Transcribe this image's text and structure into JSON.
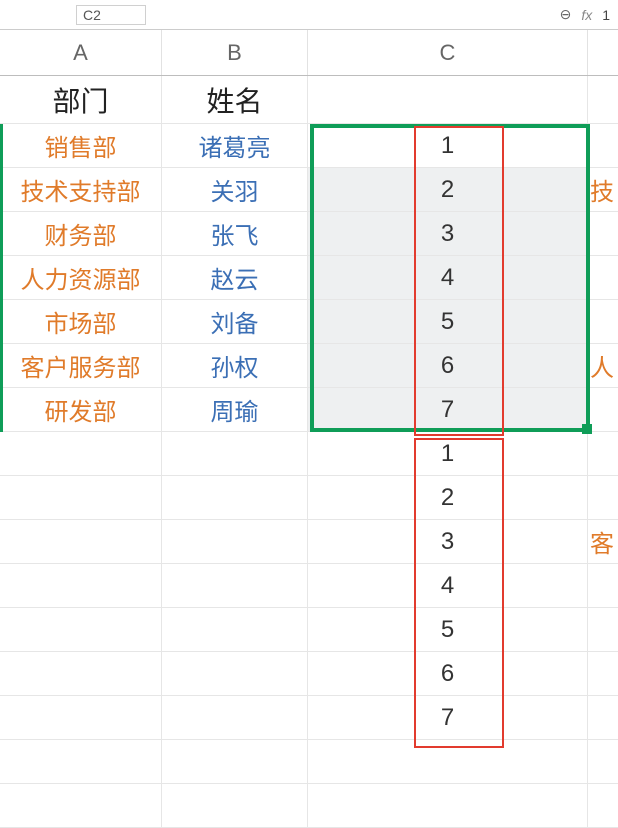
{
  "topbar": {
    "namebox": "C2",
    "fx_label": "fx",
    "formula": "1",
    "zoom_icon": "⊖"
  },
  "columns": {
    "A": "A",
    "B": "B",
    "C": "C"
  },
  "headers": {
    "dept": "部门",
    "name": "姓名"
  },
  "rows": [
    {
      "dept": "销售部",
      "name": "诸葛亮",
      "c": "1",
      "shaded": false,
      "right": ""
    },
    {
      "dept": "技术支持部",
      "name": "关羽",
      "c": "2",
      "shaded": true,
      "right": "技"
    },
    {
      "dept": "财务部",
      "name": "张飞",
      "c": "3",
      "shaded": true,
      "right": ""
    },
    {
      "dept": "人力资源部",
      "name": "赵云",
      "c": "4",
      "shaded": true,
      "right": ""
    },
    {
      "dept": "市场部",
      "name": "刘备",
      "c": "5",
      "shaded": true,
      "right": ""
    },
    {
      "dept": "客户服务部",
      "name": "孙权",
      "c": "6",
      "shaded": true,
      "right": "人"
    },
    {
      "dept": "研发部",
      "name": "周瑜",
      "c": "7",
      "shaded": true,
      "right": ""
    }
  ],
  "rows2": [
    {
      "c": "1",
      "right": ""
    },
    {
      "c": "2",
      "right": ""
    },
    {
      "c": "3",
      "right": "客"
    },
    {
      "c": "4",
      "right": ""
    },
    {
      "c": "5",
      "right": ""
    },
    {
      "c": "6",
      "right": ""
    },
    {
      "c": "7",
      "right": ""
    }
  ],
  "colors": {
    "selection": "#0f9d58",
    "annotation": "#e23b2e",
    "dept_text": "#e07b2a",
    "name_text": "#3b6fb5",
    "grid": "#e6e6e6",
    "shaded_bg": "#eef0f1"
  }
}
